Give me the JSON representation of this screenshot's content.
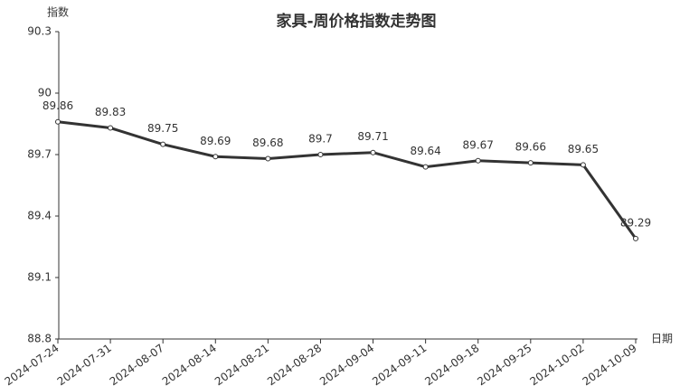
{
  "chart_data": {
    "type": "line",
    "title": "家具-周价格指数走势图",
    "y_label": "指数",
    "x_label": "日期",
    "categories": [
      "2024-07-24",
      "2024-07-31",
      "2024-08-07",
      "2024-08-14",
      "2024-08-21",
      "2024-08-28",
      "2024-09-04",
      "2024-09-11",
      "2024-09-18",
      "2024-09-25",
      "2024-10-02",
      "2024-10-09"
    ],
    "values": [
      89.86,
      89.83,
      89.75,
      89.69,
      89.68,
      89.7,
      89.71,
      89.64,
      89.67,
      89.66,
      89.65,
      89.29
    ],
    "color": "#333333",
    "ylim": [
      88.8,
      90.3
    ],
    "yticks": [
      88.8,
      89.1,
      89.4,
      89.7,
      90,
      90.3
    ],
    "grid": false
  }
}
